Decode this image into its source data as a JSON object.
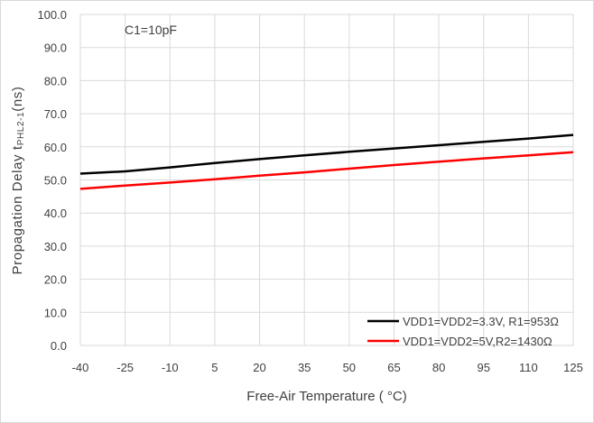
{
  "chart_data": {
    "type": "line",
    "title": "",
    "annotation": "C1=10pF",
    "xlabel": "Free-Air Temperature  ( °C)",
    "ylabel_main": "Propagation Delay t",
    "ylabel_sub": "PHL2-1",
    "ylabel_unit": "(ns)",
    "x": [
      -40,
      -25,
      -10,
      5,
      20,
      35,
      50,
      65,
      80,
      95,
      110,
      125
    ],
    "x_tick_labels": [
      "-40",
      "-25",
      "-10",
      "5",
      "20",
      "35",
      "50",
      "65",
      "80",
      "95",
      "110",
      "125"
    ],
    "ylim": [
      0,
      100
    ],
    "y_ticks": [
      0,
      10,
      20,
      30,
      40,
      50,
      60,
      70,
      80,
      90,
      100
    ],
    "y_tick_labels": [
      "0.0",
      "10.0",
      "20.0",
      "30.0",
      "40.0",
      "50.0",
      "60.0",
      "70.0",
      "80.0",
      "90.0",
      "100.0"
    ],
    "grid": true,
    "legend_position": "bottom-right",
    "series": [
      {
        "name": "VDD1=VDD2=3.3V, R1=953Ω",
        "color": "#000000",
        "values": [
          51.9,
          52.6,
          53.8,
          55.1,
          56.3,
          57.4,
          58.5,
          59.5,
          60.5,
          61.5,
          62.5,
          63.6
        ]
      },
      {
        "name": "VDD1=VDD2=5V,R2=1430Ω",
        "color": "#ff0000",
        "values": [
          47.3,
          48.3,
          49.2,
          50.2,
          51.3,
          52.3,
          53.4,
          54.5,
          55.5,
          56.5,
          57.4,
          58.4
        ]
      }
    ]
  }
}
